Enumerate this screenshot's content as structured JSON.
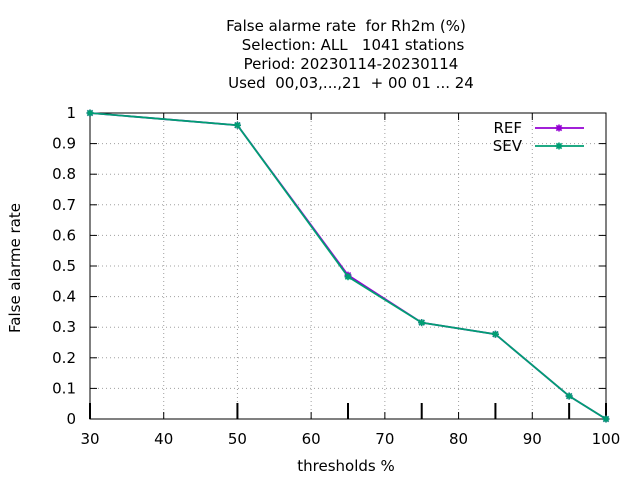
{
  "chart_data": {
    "type": "line",
    "title_lines": [
      "False alarme rate  for Rh2m (%)",
      "Selection: ALL   1041 stations",
      "Period: 20230114-20230114",
      "Used  00,03,...,21  + 00 01 ... 24"
    ],
    "xlabel": "thresholds %",
    "ylabel": "False alarme rate",
    "xlim": [
      30,
      100
    ],
    "ylim": [
      0,
      1
    ],
    "x_ticks": [
      30,
      40,
      50,
      60,
      70,
      80,
      90,
      100
    ],
    "y_ticks": [
      0,
      0.1,
      0.2,
      0.3,
      0.4,
      0.5,
      0.6,
      0.7,
      0.8,
      0.9,
      1
    ],
    "y_tick_labels": [
      "0",
      "0.1",
      "0.2",
      "0.3",
      "0.4",
      "0.5",
      "0.6",
      "0.7",
      "0.8",
      "0.9",
      "1"
    ],
    "grid": true,
    "legend_position": "top-right",
    "threshold_markers_x": [
      30,
      50,
      65,
      75,
      85,
      95,
      100
    ],
    "series": [
      {
        "name": "REF",
        "color": "#9400d3",
        "x": [
          30,
          50,
          65,
          75,
          85,
          95,
          100
        ],
        "y": [
          1.0,
          0.96,
          0.47,
          0.315,
          0.277,
          0.075,
          0.0
        ]
      },
      {
        "name": "SEV",
        "color": "#009e73",
        "x": [
          30,
          50,
          65,
          75,
          85,
          95,
          100
        ],
        "y": [
          1.0,
          0.96,
          0.465,
          0.315,
          0.277,
          0.075,
          0.0
        ]
      }
    ]
  }
}
